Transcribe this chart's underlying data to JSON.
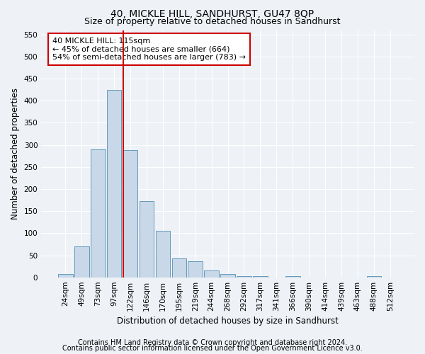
{
  "title": "40, MICKLE HILL, SANDHURST, GU47 8QP",
  "subtitle": "Size of property relative to detached houses in Sandhurst",
  "xlabel": "Distribution of detached houses by size in Sandhurst",
  "ylabel": "Number of detached properties",
  "categories": [
    "24sqm",
    "49sqm",
    "73sqm",
    "97sqm",
    "122sqm",
    "146sqm",
    "170sqm",
    "195sqm",
    "219sqm",
    "244sqm",
    "268sqm",
    "292sqm",
    "317sqm",
    "341sqm",
    "366sqm",
    "390sqm",
    "414sqm",
    "439sqm",
    "463sqm",
    "488sqm",
    "512sqm"
  ],
  "values": [
    7,
    70,
    290,
    425,
    288,
    172,
    105,
    43,
    37,
    15,
    7,
    3,
    2,
    0,
    2,
    0,
    0,
    0,
    0,
    2,
    0
  ],
  "bar_color": "#c8d8e8",
  "bar_edge_color": "#6699bb",
  "annotation_text": "40 MICKLE HILL: 115sqm\n← 45% of detached houses are smaller (664)\n54% of semi-detached houses are larger (783) →",
  "annotation_box_color": "#ffffff",
  "annotation_box_edge": "#cc0000",
  "line_color": "#cc0000",
  "property_line_bin": 4,
  "ylim": [
    0,
    560
  ],
  "yticks": [
    0,
    50,
    100,
    150,
    200,
    250,
    300,
    350,
    400,
    450,
    500,
    550
  ],
  "footer1": "Contains HM Land Registry data © Crown copyright and database right 2024.",
  "footer2": "Contains public sector information licensed under the Open Government Licence v3.0.",
  "background_color": "#eef2f7",
  "plot_background": "#eef2f7",
  "grid_color": "#ffffff",
  "title_fontsize": 10,
  "subtitle_fontsize": 9,
  "axis_label_fontsize": 8.5,
  "tick_fontsize": 7.5,
  "annotation_fontsize": 8,
  "footer_fontsize": 7
}
